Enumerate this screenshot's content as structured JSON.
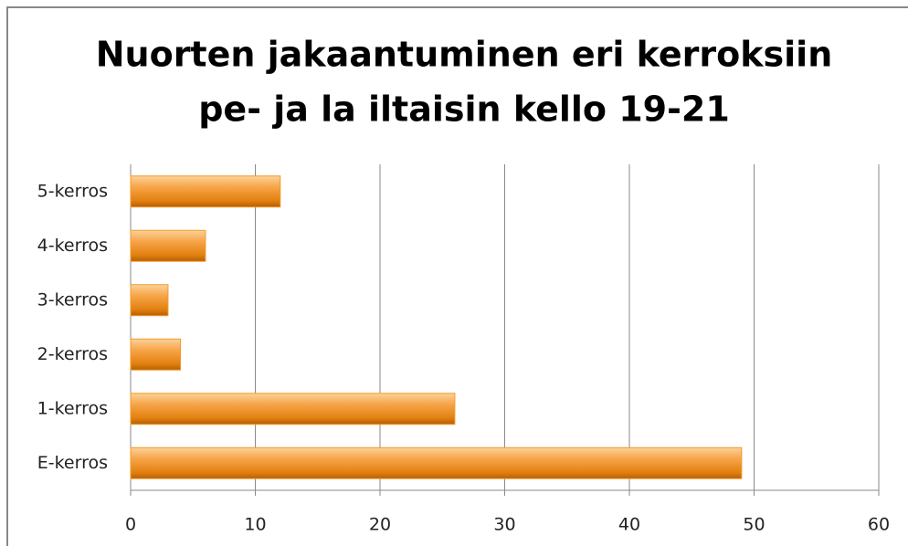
{
  "chart_data": {
    "type": "hbar",
    "title": [
      "Nuorten jakaantuminen eri kerroksiin",
      "pe- ja la iltaisin kello 19-21"
    ],
    "categories": [
      "5-kerros",
      "4-kerros",
      "3-kerros",
      "2-kerros",
      "1-kerros",
      "E-kerros"
    ],
    "values": [
      12,
      6,
      3,
      4,
      26,
      49
    ],
    "color": "#f39a2b",
    "xlim": [
      0,
      60
    ],
    "xticks": [
      0,
      10,
      20,
      30,
      40,
      50,
      60
    ],
    "grid": true
  }
}
